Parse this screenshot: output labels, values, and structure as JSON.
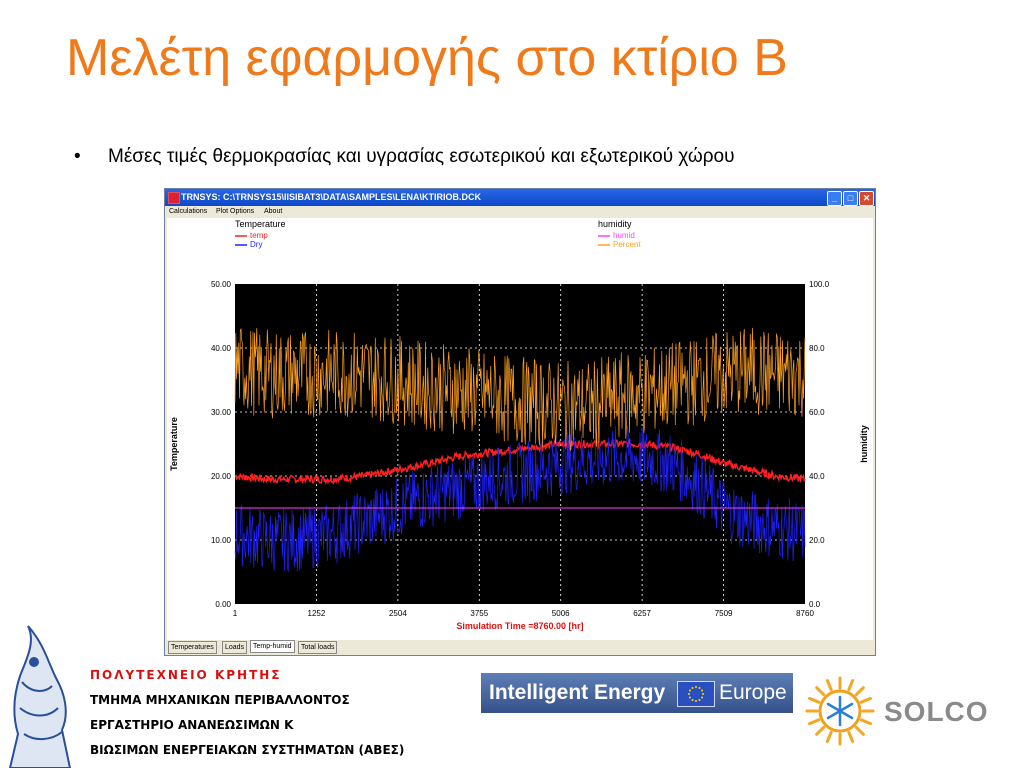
{
  "slide": {
    "title": "Μελέτη εφαρμογής στο κτίριο Β",
    "bullet": "•",
    "bullet_text": "Μέσες τιμές θερμοκρασίας και υγρασίας εσωτερικού και εξωτερικού χώρου"
  },
  "window": {
    "title": "TRNSYS: C:\\TRNSYS15\\IISIBAT3\\DATA\\SAMPLES\\LENA\\KTIRIOB.DCK",
    "minimize": "_",
    "maximize": "□",
    "close": "✕",
    "menu": [
      "Calculations",
      "Plot Options",
      "About"
    ],
    "tabs": [
      "Temperatures",
      "Loads",
      "Temp-humid",
      "Total loads"
    ],
    "active_tab": "Temp-humid"
  },
  "chart_data": {
    "type": "line",
    "xlabel": "Simulation Time =8760.00 [hr]",
    "ylabel_left": "Temperature",
    "ylabel_right": "humidity",
    "xlim": [
      1,
      8760
    ],
    "ylim_left": [
      0,
      50
    ],
    "ylim_right": [
      0,
      100
    ],
    "x_ticks": [
      "1",
      "1252",
      "2504",
      "3755",
      "5006",
      "6257",
      "7509",
      "8760"
    ],
    "y_ticks_left": [
      "0.00",
      "10.00",
      "20.00",
      "30.00",
      "40.00",
      "50.00"
    ],
    "y_ticks_right": [
      "0.0",
      "20.0",
      "40.0",
      "60.0",
      "80.0",
      "100.0"
    ],
    "grid": true,
    "background": "#000000",
    "legend_left": {
      "title": "Temperature",
      "items": [
        {
          "name": "temp",
          "color": "#ff2020"
        },
        {
          "name": "Dry",
          "color": "#2020ff"
        }
      ]
    },
    "legend_right": {
      "title": "humidity",
      "items": [
        {
          "name": "humid",
          "color": "#ff40ff"
        },
        {
          "name": "Percent",
          "color": "#ffa020"
        }
      ]
    },
    "series": [
      {
        "name": "temp",
        "axis": "left",
        "color": "#ff2020",
        "x": [
          1,
          500,
          1000,
          1500,
          2000,
          2504,
          3000,
          3400,
          3755,
          4200,
          4600,
          5006,
          5400,
          5800,
          6257,
          6700,
          7100,
          7509,
          7900,
          8300,
          8760
        ],
        "y": [
          20,
          19.5,
          19.5,
          19.5,
          20,
          21,
          22,
          23,
          23.5,
          24,
          24.5,
          25,
          25,
          25,
          25,
          24.5,
          23.5,
          22,
          21,
          20,
          19.5
        ]
      },
      {
        "name": "Dry",
        "axis": "left",
        "color": "#2020ff",
        "x": [
          1,
          500,
          1000,
          1500,
          2000,
          2504,
          3000,
          3400,
          3755,
          4200,
          4600,
          5006,
          5400,
          5800,
          6257,
          6700,
          7100,
          7509,
          7900,
          8300,
          8760
        ],
        "y": [
          11,
          10,
          10,
          11,
          13,
          15,
          17,
          18,
          19,
          20,
          21,
          22,
          22.5,
          23,
          23,
          22,
          19,
          15,
          13,
          12,
          11
        ]
      },
      {
        "name": "humid",
        "axis": "right",
        "color": "#ff40ff",
        "x": [
          1,
          8760
        ],
        "y": [
          30,
          30
        ]
      },
      {
        "name": "Percent",
        "axis": "right",
        "color": "#ffa020",
        "x": [
          1,
          500,
          1000,
          1500,
          2000,
          2504,
          3000,
          3400,
          3755,
          4200,
          4600,
          5006,
          5400,
          5800,
          6257,
          6700,
          7100,
          7509,
          7900,
          8300,
          8760
        ],
        "y": [
          74,
          72,
          72,
          72,
          72,
          70,
          68,
          67,
          66,
          64,
          63,
          62,
          62,
          64,
          66,
          68,
          70,
          72,
          73,
          72,
          72
        ]
      }
    ]
  },
  "footer": {
    "tuc_lines": [
      "ΠΟΛΥΤΕΧΝΕΙΟ ΚΡΗΤΗΣ",
      "ΤΜΗΜΑ ΜΗΧΑΝΙΚΩΝ ΠΕΡΙΒΑΛΛΟΝΤΟΣ",
      "ΕΡΓΑΣΤΗΡΙΟ ΑΝΑΝΕΩΣΙΜΩΝ Κ",
      "ΒΙΩΣΙΜΩΝ ΕΝΕΡΓΕΙΑΚΩΝ ΣΥΣΤΗΜΑΤΩΝ (ΑΒΕΣ)"
    ],
    "tuc_first_line_color": "#d81010",
    "iee_text": "Intelligent Energy",
    "iee_text2": "Europe",
    "solco_text": "SOLCO",
    "solco_text_color": "#8a8a8a",
    "solco_accent_color": "#2a6fd0"
  }
}
